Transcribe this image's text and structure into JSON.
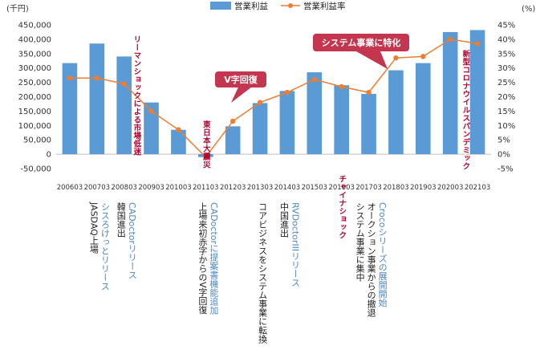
{
  "chart_data": {
    "type": "bar+line",
    "title": "",
    "categories": [
      "200603",
      "200703",
      "200803",
      "200903",
      "201003",
      "201103",
      "201203",
      "201303",
      "201403",
      "201503",
      "201603",
      "201703",
      "201803",
      "201903",
      "202003",
      "202103"
    ],
    "series": [
      {
        "name": "営業利益",
        "type": "bar",
        "axis": "left",
        "color": "#5b9bd5",
        "values": [
          317000,
          385000,
          340000,
          180000,
          85000,
          -10000,
          97000,
          178000,
          220000,
          285000,
          240000,
          210000,
          292000,
          317000,
          425000,
          432000
        ]
      },
      {
        "name": "営業利益率",
        "type": "line",
        "axis": "right",
        "color": "#ed7d31",
        "values": [
          26.5,
          26.5,
          24.5,
          15.0,
          8.5,
          -1.0,
          11.5,
          18.0,
          21.5,
          26.0,
          23.5,
          21.5,
          33.5,
          34.0,
          40.0,
          38.5
        ]
      }
    ],
    "y_left": {
      "unit": "(千円)",
      "min": -50000,
      "max": 450000,
      "step": 50000,
      "tick_labels": [
        "-50,000",
        "0",
        "50,000",
        "100,000",
        "150,000",
        "200,000",
        "250,000",
        "300,000",
        "350,000",
        "400,000",
        "450,000"
      ]
    },
    "y_right": {
      "unit": "(%)",
      "min": -5,
      "max": 45,
      "step": 5,
      "tick_labels": [
        "-5%",
        "0%",
        "5%",
        "10%",
        "15%",
        "20%",
        "25%",
        "30%",
        "35%",
        "40%",
        "45%"
      ]
    },
    "legend_position": "top",
    "annotations": [
      {
        "text": "リーマンショックによる市場低迷",
        "category": "200803"
      },
      {
        "text": "東日本大震災",
        "category": "201103"
      },
      {
        "text": "チャイナショック",
        "category": "201603"
      },
      {
        "text": "新型コロナウイルスパンデミック",
        "category": "202003"
      }
    ],
    "callouts": [
      {
        "text": "V字回復",
        "category": "201203"
      },
      {
        "text": "システム事業に特化",
        "category": "201703"
      }
    ],
    "events": [
      {
        "category": "200703",
        "lines": [
          {
            "text": "JASDAQ上場",
            "color": "#222222"
          },
          {
            "text": "シスろけっとリリース",
            "color": "#4a86c8"
          }
        ]
      },
      {
        "category": "200803",
        "lines": [
          {
            "text": "韓国進出",
            "color": "#222222"
          },
          {
            "text": "CADoctorリリース",
            "color": "#4a86c8"
          }
        ]
      },
      {
        "category": "201103",
        "lines": [
          {
            "text": "上場来初赤字からのV字回復",
            "color": "#222222"
          },
          {
            "text": "CADoctorに提案書機能追加",
            "color": "#4a86c8"
          }
        ]
      },
      {
        "category": "201303",
        "lines": [
          {
            "text": "コアビジネスをシステム事業に転換",
            "color": "#222222"
          }
        ]
      },
      {
        "category": "201403",
        "lines": [
          {
            "text": "中国進出",
            "color": "#222222"
          },
          {
            "text": "RVDoctorIIIリリース",
            "color": "#4a86c8"
          }
        ]
      },
      {
        "category": "201703",
        "lines": [
          {
            "text": "システム事業に集中",
            "color": "#222222"
          },
          {
            "text": "オークション事業からの撤退",
            "color": "#222222"
          },
          {
            "text": "Crocoシリーズの展開開始",
            "color": "#4a86c8"
          }
        ]
      }
    ]
  }
}
